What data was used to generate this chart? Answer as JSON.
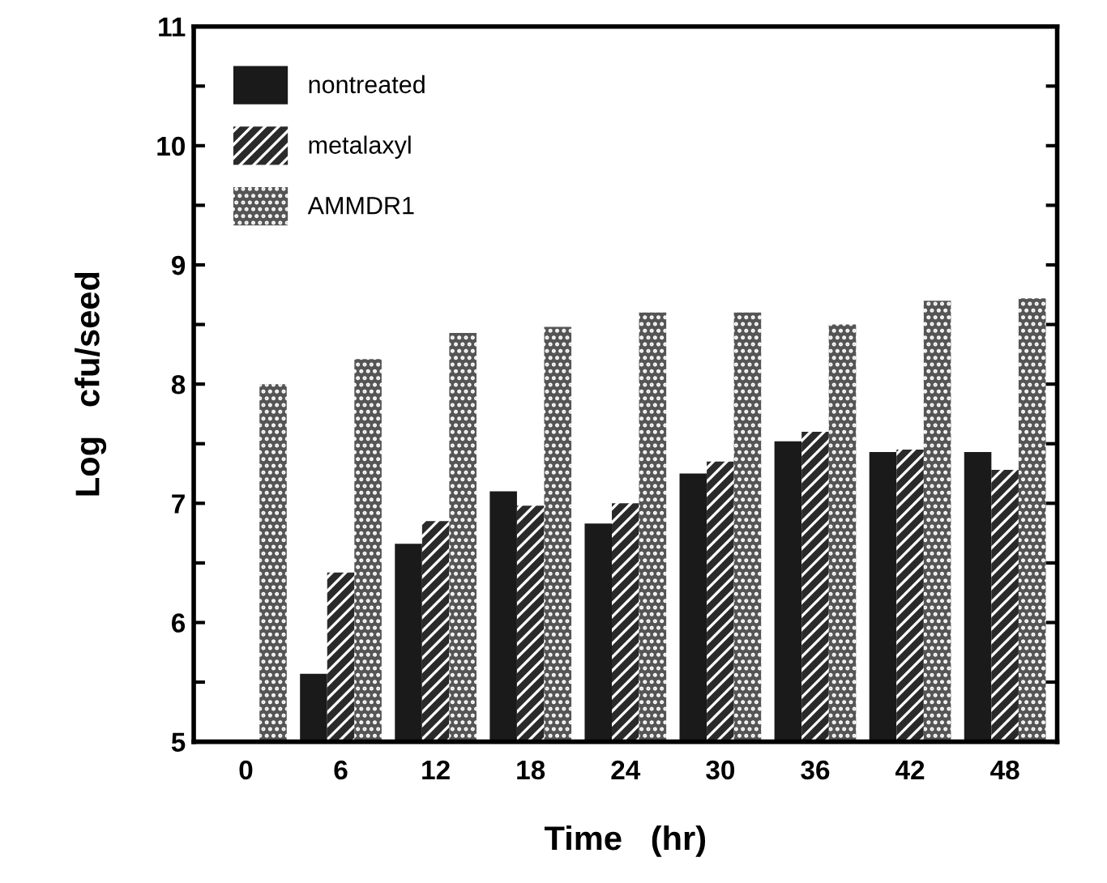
{
  "chart_data": {
    "type": "bar",
    "xlabel": "Time   (hr)",
    "ylabel": "Log   cfu/seed",
    "categories": [
      "0",
      "6",
      "12",
      "18",
      "24",
      "30",
      "36",
      "42",
      "48"
    ],
    "series": [
      {
        "name": "nontreated",
        "color": "#1a1a1a",
        "values": [
          null,
          5.57,
          6.66,
          7.1,
          6.83,
          7.25,
          7.52,
          7.43,
          7.43
        ]
      },
      {
        "name": "metalaxyl",
        "color": "#2a2a2a",
        "values": [
          null,
          6.42,
          6.85,
          6.98,
          7.0,
          7.35,
          7.6,
          7.45,
          7.28
        ]
      },
      {
        "name": "AMMDR1",
        "color": "#555555",
        "values": [
          8.0,
          8.21,
          8.43,
          8.48,
          8.6,
          8.6,
          8.5,
          8.7,
          8.72
        ]
      }
    ],
    "ylim": [
      5,
      11
    ],
    "yticks": [
      5,
      {
        "value": 5.5,
        "label": null
      },
      6,
      {
        "value": 6.5,
        "label": null
      },
      7,
      {
        "value": 7.5,
        "label": null
      },
      8,
      {
        "value": 8.5,
        "label": null
      },
      9,
      {
        "value": 9.5,
        "label": null
      },
      10,
      {
        "value": 10.5,
        "label": null
      },
      11
    ],
    "grid": false,
    "legend": "top left"
  }
}
